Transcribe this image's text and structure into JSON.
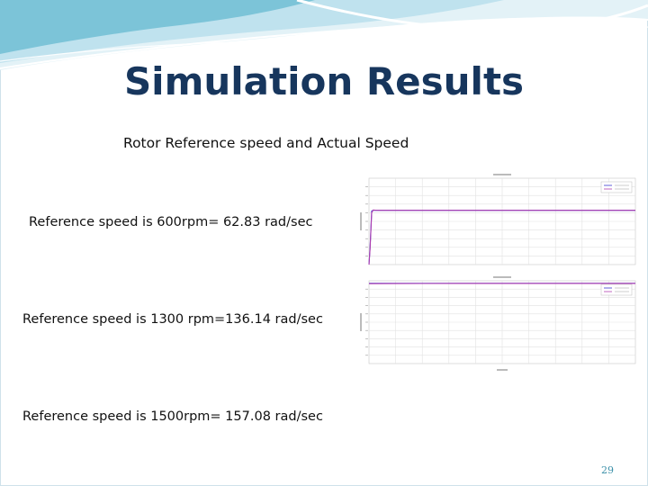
{
  "slide": {
    "title": "Simulation Results",
    "subtitle": "Rotor Reference speed and Actual Speed",
    "lines": [
      "Reference speed is 600rpm= 62.83 rad/sec",
      "Reference speed is 1300 rpm=136.14 rad/sec",
      "Reference speed is 1500rpm= 157.08 rad/sec"
    ],
    "page_number": "29",
    "colors": {
      "title": "#17365d",
      "accent": "#7cc4d8",
      "page_number": "#3a8fa8"
    }
  },
  "chart_data": [
    {
      "type": "line",
      "x": [
        0,
        0.02,
        0.05,
        0.08,
        0.12,
        0.2,
        0.5,
        1,
        2,
        3,
        4,
        5
      ],
      "series": [
        {
          "values": [
            0,
            20,
            62,
            62.8,
            62.83,
            62.83,
            62.83,
            62.83,
            62.83,
            62.83,
            62.83,
            62.83
          ],
          "color": "#3a3ad0"
        },
        {
          "values": [
            0,
            18,
            60,
            63.2,
            62.9,
            62.83,
            62.83,
            62.83,
            62.83,
            62.83,
            62.83,
            62.83
          ],
          "color": "#b040b0"
        }
      ],
      "xlim": [
        0,
        5
      ],
      "ylim": [
        0,
        100
      ],
      "grid": true,
      "legend": "top-right"
    },
    {
      "type": "line",
      "x": [
        0,
        0.5,
        1,
        2,
        3,
        4,
        5
      ],
      "series": [
        {
          "values": [
            97,
            97,
            97,
            97,
            97,
            97,
            97
          ],
          "color": "#3a3ad0"
        },
        {
          "values": [
            96.5,
            96.6,
            96.7,
            96.8,
            96.8,
            96.8,
            96.8
          ],
          "color": "#b040b0"
        }
      ],
      "xlim": [
        0,
        5
      ],
      "ylim": [
        0,
        100
      ],
      "grid": true,
      "legend": "top-right"
    }
  ]
}
